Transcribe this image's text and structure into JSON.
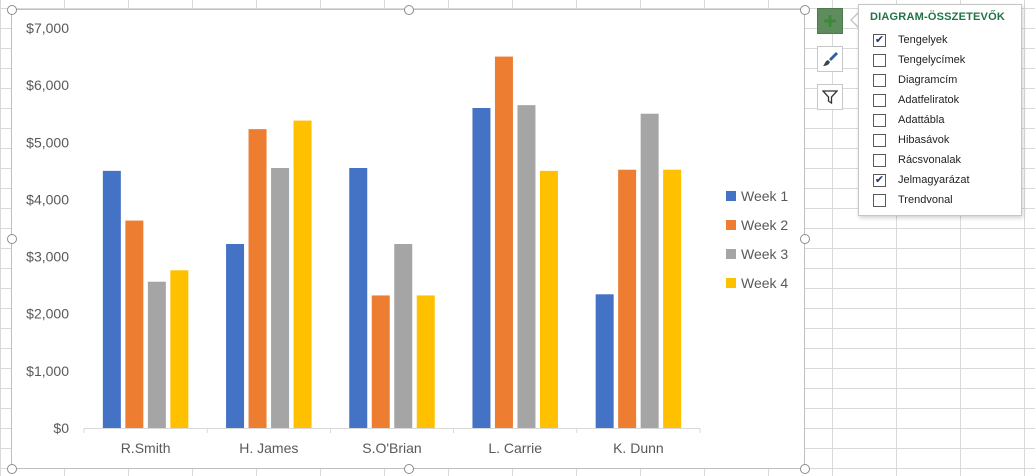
{
  "chart_data": {
    "type": "bar",
    "categories": [
      "R.Smith",
      "H. James",
      "S.O'Brian",
      "L. Carrie",
      "K. Dunn"
    ],
    "series": [
      {
        "name": "Week 1",
        "color": "#4472c4",
        "values": [
          4500,
          3220,
          4550,
          5600,
          2340
        ]
      },
      {
        "name": "Week 2",
        "color": "#ed7d31",
        "values": [
          3630,
          5230,
          2320,
          6500,
          4520
        ]
      },
      {
        "name": "Week 3",
        "color": "#a5a5a5",
        "values": [
          2560,
          4550,
          3220,
          5650,
          5500
        ]
      },
      {
        "name": "Week 4",
        "color": "#ffc000",
        "values": [
          2760,
          5380,
          2320,
          4500,
          4520
        ]
      }
    ],
    "y_ticks": [
      "$0",
      "$1,000",
      "$2,000",
      "$3,000",
      "$4,000",
      "$5,000",
      "$6,000",
      "$7,000"
    ],
    "ylim": [
      0,
      7000
    ],
    "grid": false,
    "legend_position": "right",
    "title": "",
    "xlabel": "",
    "ylabel": ""
  },
  "side_buttons": [
    {
      "icon": "plus-icon",
      "active": true
    },
    {
      "icon": "brush-icon",
      "active": false
    },
    {
      "icon": "filter-icon",
      "active": false
    }
  ],
  "elements_panel": {
    "title": "DIAGRAM-ÖSSZETEVŐK",
    "options": [
      {
        "label": "Tengelyek",
        "checked": true
      },
      {
        "label": "Tengelycímek",
        "checked": false
      },
      {
        "label": "Diagramcím",
        "checked": false
      },
      {
        "label": "Adatfeliratok",
        "checked": false
      },
      {
        "label": "Adattábla",
        "checked": false
      },
      {
        "label": "Hibasávok",
        "checked": false
      },
      {
        "label": "Rácsvonalak",
        "checked": false
      },
      {
        "label": "Jelmagyarázat",
        "checked": true
      },
      {
        "label": "Trendvonal",
        "checked": false
      }
    ]
  }
}
